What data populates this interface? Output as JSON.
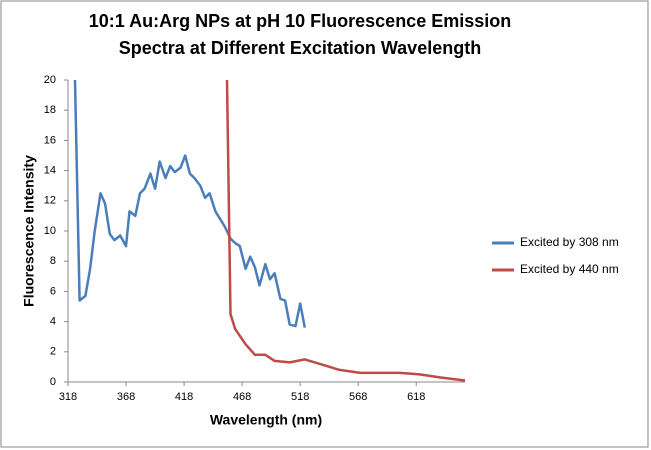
{
  "chart_data": {
    "type": "line",
    "title": [
      "10:1 Au:Arg NPs at pH 10 Fluorescence Emission",
      "Spectra  at Different Excitation Wavelength"
    ],
    "x_label": "Wavelength (nm)",
    "y_label": "Fluorescence Intensity",
    "xlim": [
      318,
      660
    ],
    "xticks": [
      318,
      368,
      418,
      468,
      518,
      568,
      618
    ],
    "ylim": [
      0,
      20
    ],
    "yticks": [
      0,
      2,
      4,
      6,
      8,
      10,
      12,
      14,
      16,
      18,
      20
    ],
    "grid": false,
    "legend": "right",
    "series": [
      {
        "name": "Excited by 308 nm",
        "color": "#4a7ebb",
        "x": [
          324,
          328,
          333,
          337,
          341,
          346,
          350,
          354,
          358,
          363,
          368,
          371,
          376,
          380,
          384,
          389,
          393,
          397,
          402,
          406,
          410,
          415,
          419,
          423,
          427,
          432,
          436,
          440,
          445,
          449,
          453,
          458,
          462,
          466,
          471,
          475,
          479,
          483,
          488,
          492,
          496,
          501,
          505,
          509,
          514,
          518,
          522
        ],
        "values": [
          20,
          5.4,
          5.7,
          7.5,
          10,
          12.5,
          11.8,
          9.8,
          9.4,
          9.7,
          9.0,
          11.3,
          11,
          12.5,
          12.8,
          13.8,
          12.8,
          14.6,
          13.5,
          14.3,
          13.9,
          14.2,
          15,
          13.8,
          13.5,
          13,
          12.2,
          12.5,
          11.3,
          10.8,
          10.3,
          9.5,
          9.2,
          9.0,
          7.5,
          8.3,
          7.6,
          6.4,
          7.8,
          6.8,
          7.2,
          5.5,
          5.4,
          3.8,
          3.7,
          5.2,
          3.6
        ]
      },
      {
        "name": "Excited by 440 nm",
        "color": "#be4b48",
        "x": [
          455,
          458,
          462,
          471,
          479,
          488,
          496,
          509,
          522,
          535,
          552,
          570,
          587,
          604,
          621,
          639,
          660
        ],
        "values": [
          20,
          4.5,
          3.5,
          2.5,
          1.8,
          1.8,
          1.4,
          1.3,
          1.5,
          1.2,
          0.8,
          0.6,
          0.6,
          0.6,
          0.5,
          0.3,
          0.1
        ]
      }
    ]
  }
}
